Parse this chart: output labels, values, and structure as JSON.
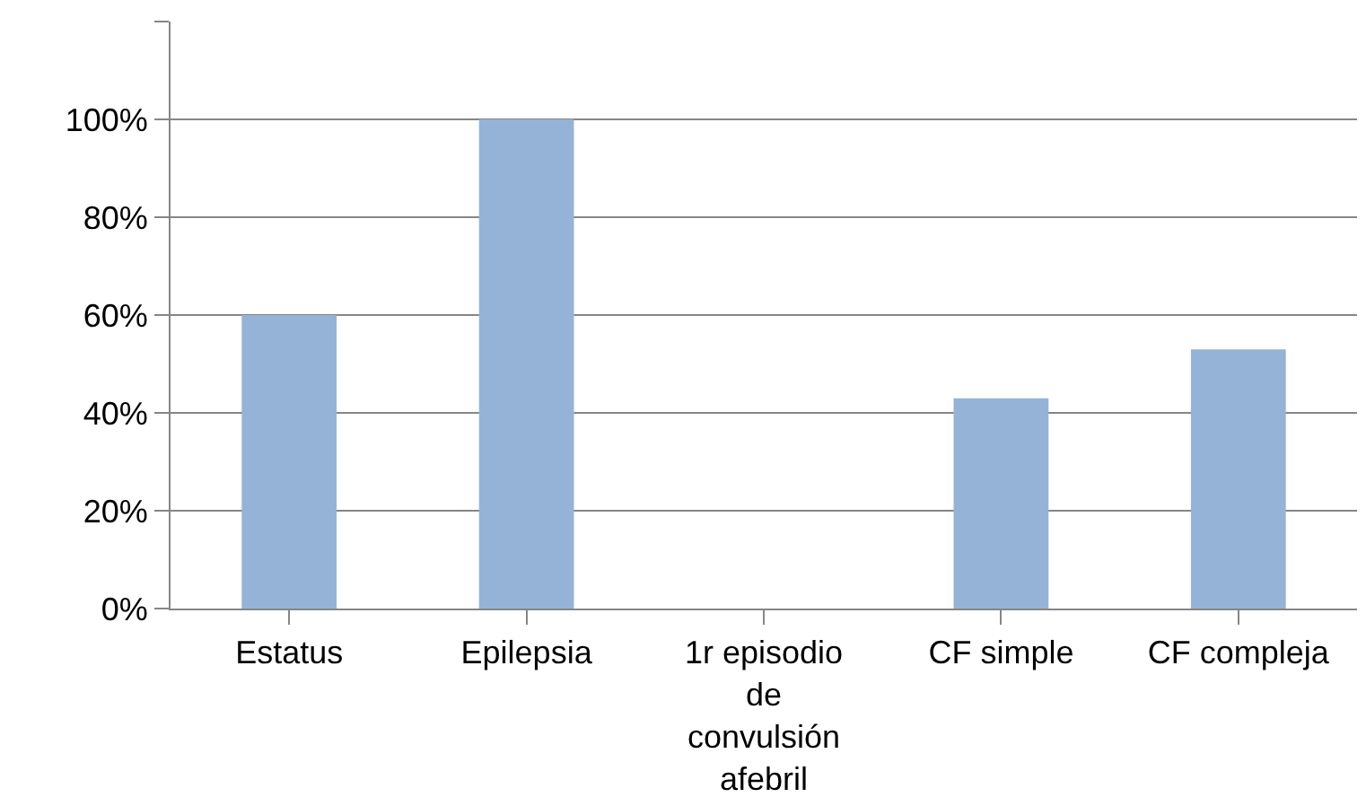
{
  "chart_data": {
    "type": "bar",
    "categories": [
      "Estatus",
      "Epilepsia",
      "1r episodio de convulsión afebril",
      "CF simple",
      "CF compleja"
    ],
    "values": [
      60,
      100,
      0,
      43,
      53
    ],
    "color": "#95b3d7",
    "ylim": [
      0,
      120
    ],
    "yticks": [
      {
        "value": 0,
        "label": "0%"
      },
      {
        "value": 20,
        "label": "20%"
      },
      {
        "value": 40,
        "label": "40%"
      },
      {
        "value": 60,
        "label": "60%"
      },
      {
        "value": 80,
        "label": "80%"
      },
      {
        "value": 100,
        "label": "100%"
      },
      {
        "value": 120,
        "label": null
      }
    ],
    "grid": "y"
  }
}
